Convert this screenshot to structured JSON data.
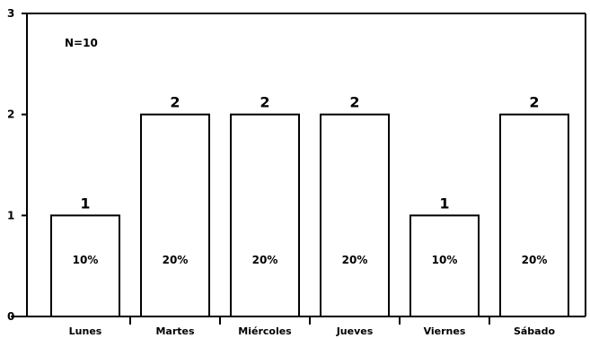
{
  "chart_data": {
    "type": "bar",
    "annotation": "N=10",
    "categories": [
      "Lunes",
      "Martes",
      "Miércoles",
      "Jueves",
      "Viernes",
      "Sábado"
    ],
    "values": [
      1,
      2,
      2,
      2,
      1,
      2
    ],
    "percent_labels": [
      "10%",
      "20%",
      "20%",
      "20%",
      "10%",
      "20%"
    ],
    "value_labels": [
      "1",
      "2",
      "2",
      "2",
      "1",
      "2"
    ],
    "yticks": [
      0,
      1,
      2,
      3
    ],
    "ylim": [
      0,
      3
    ],
    "grid": false,
    "bar_color": "#ffffff",
    "edge_color": "#000000"
  }
}
